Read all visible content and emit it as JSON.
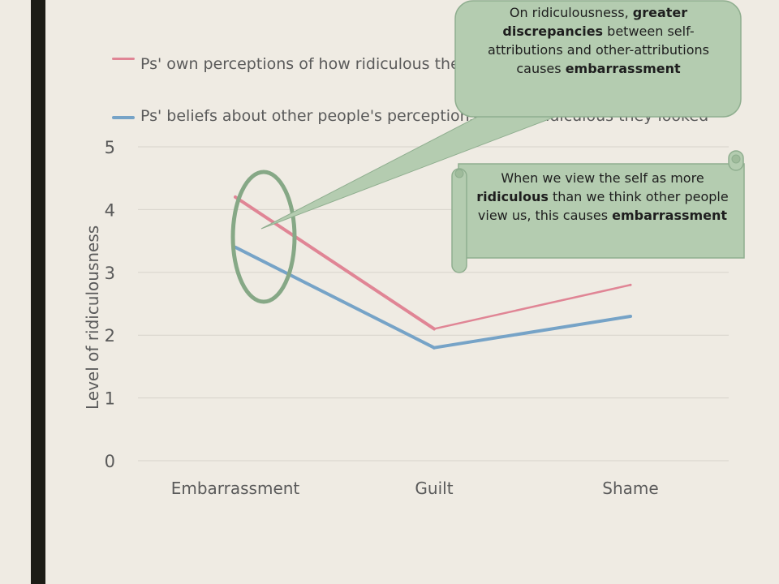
{
  "colors": {
    "background": "#efebe3",
    "left_bar": "#1c1c16",
    "series_self": "#e08595",
    "series_others": "#76a3c7",
    "highlight_ellipse": "#86a886",
    "callout_fill": "#b4ccb0",
    "callout_stroke": "#8fae8f"
  },
  "chart_data": {
    "type": "line",
    "categories": [
      "Embarrassment",
      "Guilt",
      "Shame"
    ],
    "series": [
      {
        "name": "Ps' own perceptions of how ridiculous they looked",
        "values": [
          4.2,
          2.1,
          2.8
        ]
      },
      {
        "name": "Ps' beliefs about other people's perceptions of how ridiculous they looked",
        "values": [
          3.4,
          1.8,
          2.3
        ]
      }
    ],
    "ylabel": "Level of ridiculousness",
    "ylim": [
      0,
      5
    ],
    "yticks": [
      "0",
      "1",
      "2",
      "3",
      "4",
      "5"
    ],
    "grid": true,
    "legend_position": "top"
  },
  "legend": {
    "item1": "Ps' own perceptions of how ridiculous they looked",
    "item2": "Ps' beliefs about other people's perceptions of how ridiculous they looked"
  },
  "callouts": {
    "top": {
      "pre": "On ridiculousness, ",
      "bold1": "greater discrepancies",
      "mid": " between self-attributions and other-attributions causes ",
      "bold2": "embarrassment"
    },
    "scroll": {
      "pre": "When we view the self as more ",
      "bold1": "ridiculous",
      "mid": " than we think other people view us, this causes ",
      "bold2": "embarrassment"
    }
  }
}
